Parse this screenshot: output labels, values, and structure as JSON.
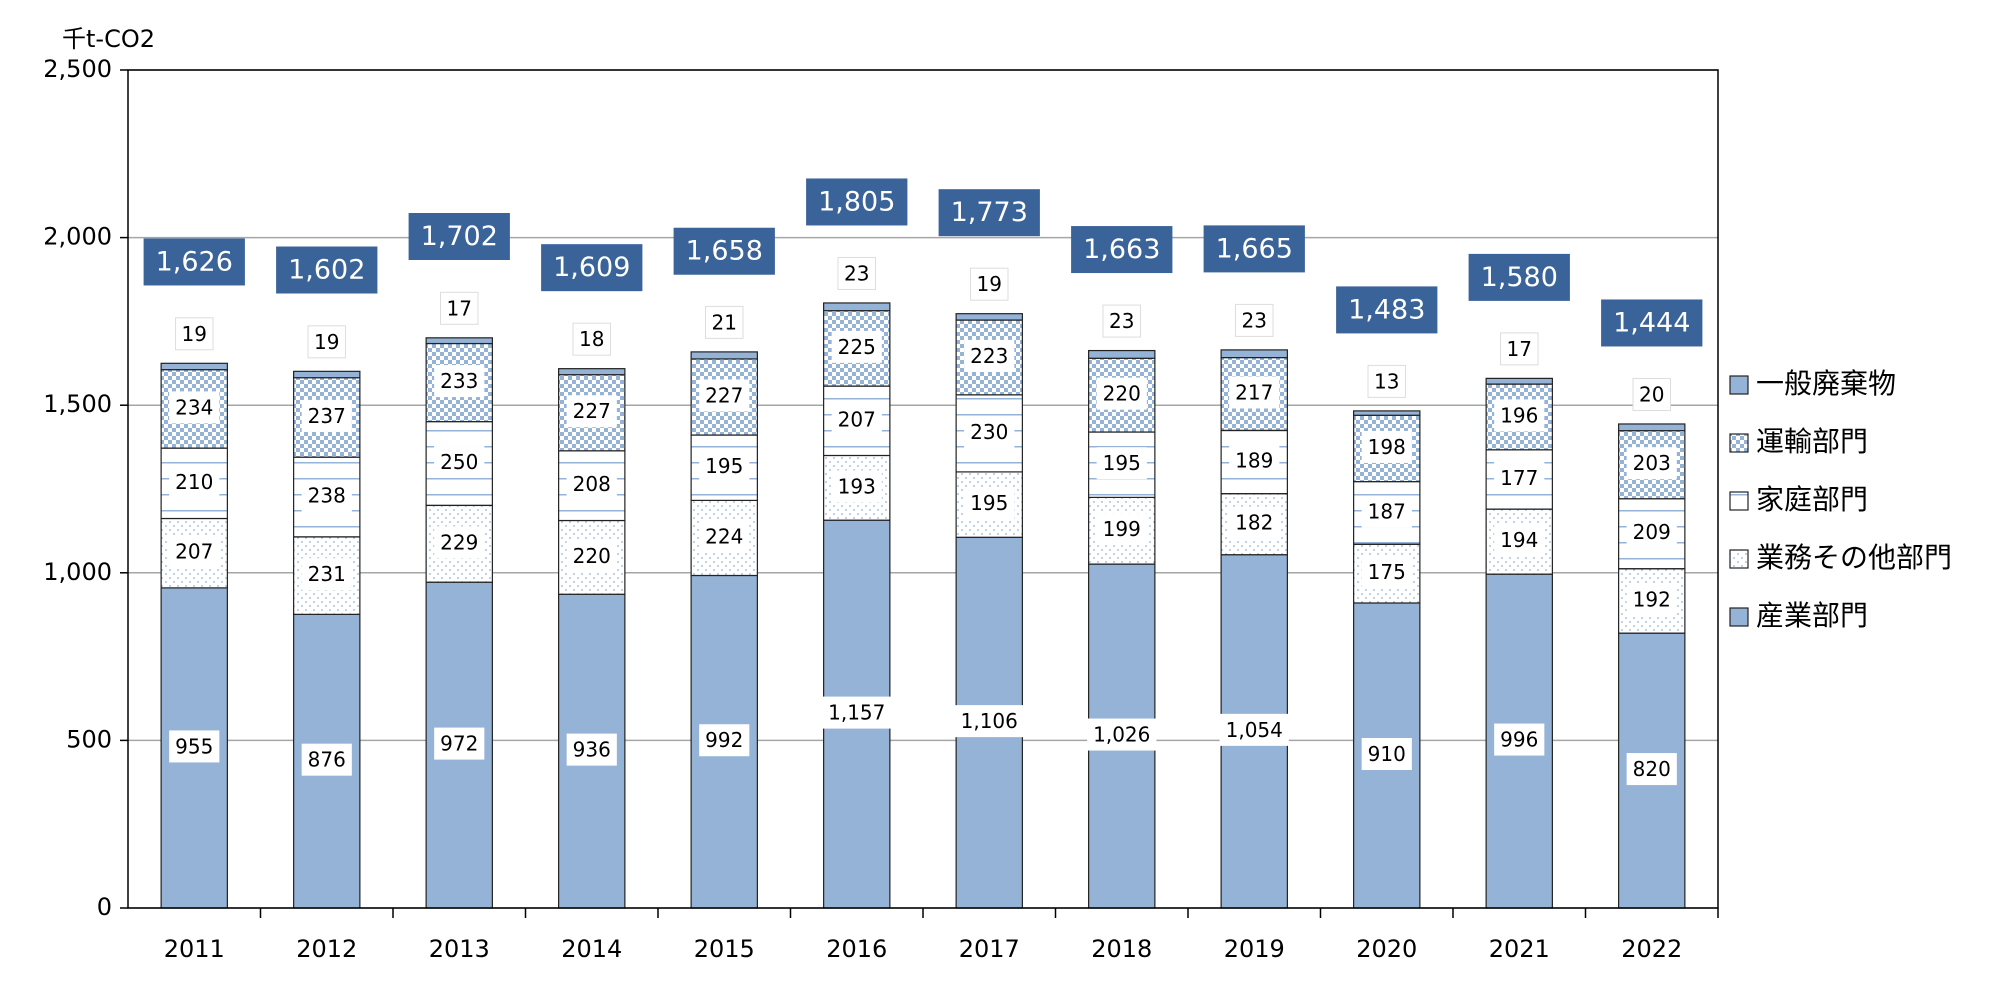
{
  "chart_data": {
    "type": "stacked_bar",
    "y_unit": "千t-CO2",
    "categories": [
      "2011",
      "2012",
      "2013",
      "2014",
      "2015",
      "2016",
      "2017",
      "2018",
      "2019",
      "2020",
      "2021",
      "2022"
    ],
    "series": [
      {
        "name": "産業部門",
        "color": "#95b3d7",
        "pattern": "solid",
        "values": [
          955,
          876,
          972,
          936,
          992,
          1157,
          1106,
          1026,
          1054,
          910,
          996,
          820
        ],
        "value_labels": [
          "955",
          "876",
          "972",
          "936",
          "992",
          "1,157",
          "1,106",
          "1,026",
          "1,054",
          "910",
          "996",
          "820"
        ]
      },
      {
        "name": "業務その他部門",
        "color": "#95b3d7",
        "pattern": "dots",
        "values": [
          207,
          231,
          229,
          220,
          224,
          193,
          195,
          199,
          182,
          175,
          194,
          192
        ]
      },
      {
        "name": "家庭部門",
        "color": "#95b3d7",
        "pattern": "lines",
        "values": [
          210,
          238,
          250,
          208,
          195,
          207,
          230,
          195,
          189,
          187,
          177,
          209
        ]
      },
      {
        "name": "運輸部門",
        "color": "#95b3d7",
        "pattern": "checker",
        "values": [
          234,
          237,
          233,
          227,
          227,
          225,
          223,
          220,
          217,
          198,
          196,
          203
        ]
      },
      {
        "name": "一般廃棄物",
        "color": "#95b3d7",
        "pattern": "solid",
        "values": [
          19,
          19,
          17,
          18,
          21,
          23,
          19,
          23,
          23,
          13,
          17,
          20
        ]
      }
    ],
    "totals": [
      1626,
      1602,
      1702,
      1609,
      1658,
      1805,
      1773,
      1663,
      1665,
      1483,
      1580,
      1444
    ],
    "total_labels": [
      "1,626",
      "1,602",
      "1,702",
      "1,609",
      "1,658",
      "1,805",
      "1,773",
      "1,663",
      "1,665",
      "1,483",
      "1,580",
      "1,444"
    ],
    "total_color": "#3a6399",
    "ylim": [
      0,
      2500
    ],
    "yticks": [
      0,
      500,
      {
        "value": 1000,
        "label": "1,000"
      },
      {
        "value": 1500,
        "label": "1,500"
      },
      {
        "value": 2000,
        "label": "2,000"
      },
      {
        "value": 2500,
        "label": "2,500"
      }
    ],
    "grid": true
  }
}
